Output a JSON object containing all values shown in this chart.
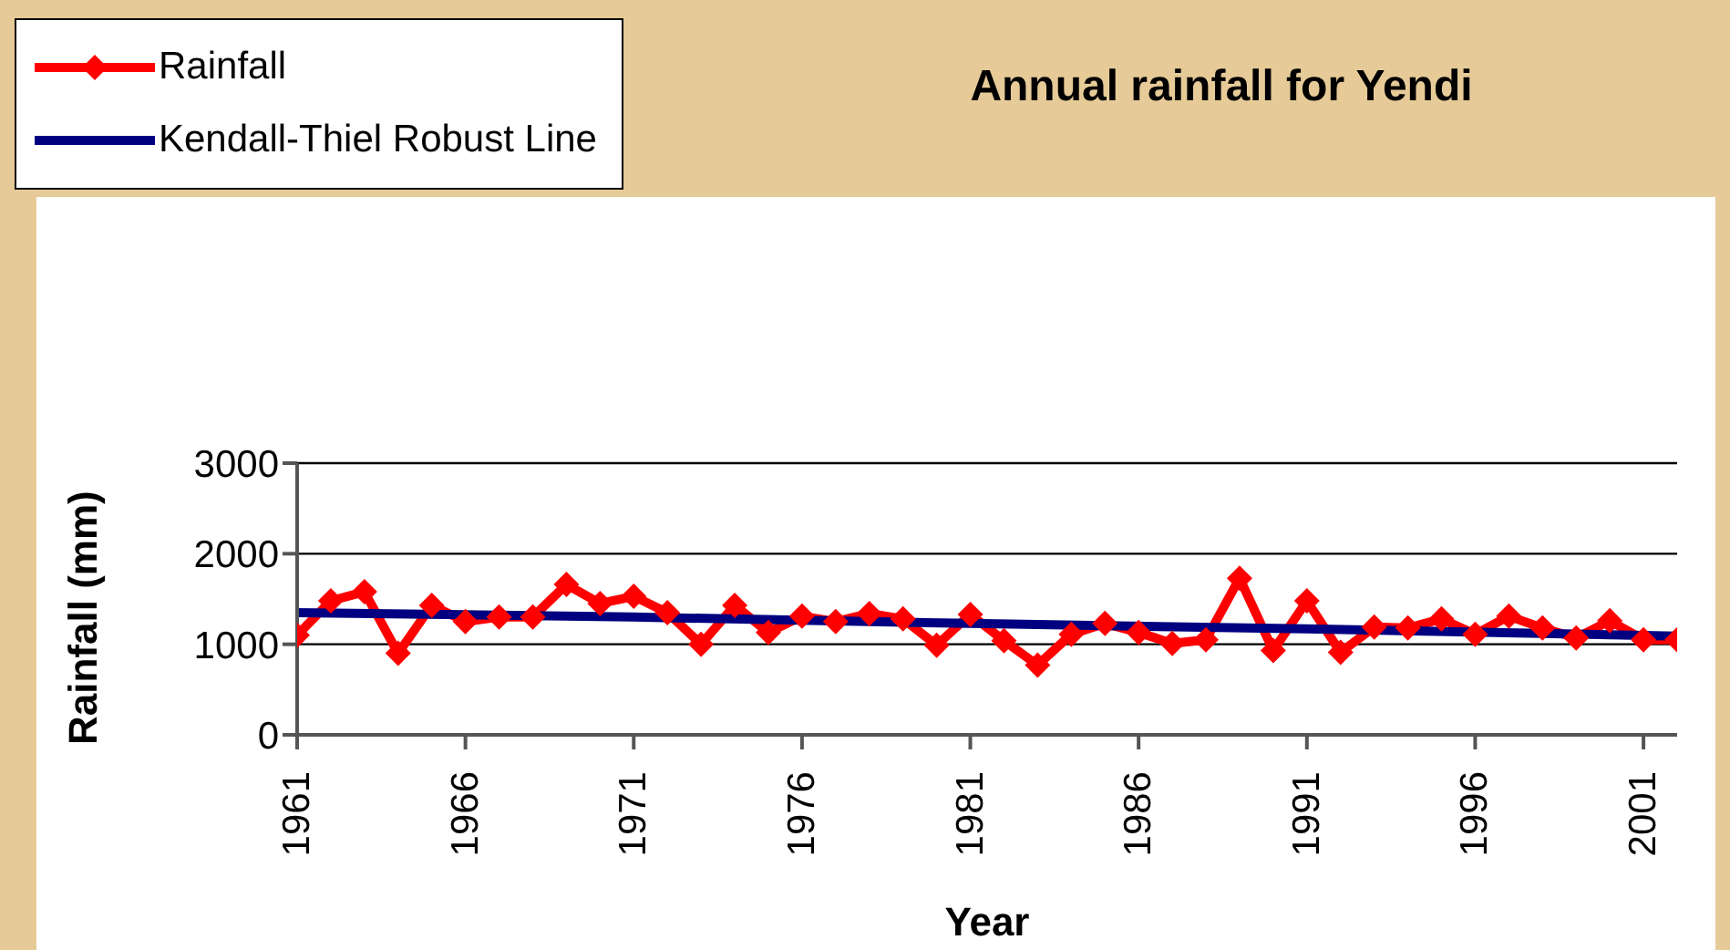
{
  "chart_data": {
    "type": "line",
    "title": "Annual rainfall for Yendi",
    "xlabel": "Year",
    "ylabel": "Rainfall (mm)",
    "xlim": [
      1961,
      2002
    ],
    "xticks": [
      1961,
      1966,
      1971,
      1976,
      1981,
      1986,
      1991,
      1996,
      2001
    ],
    "ylim": [
      0,
      3000
    ],
    "yticks": [
      0,
      1000,
      2000,
      3000
    ],
    "grid": "y",
    "legend": "top left",
    "series": [
      {
        "name": "Rainfall",
        "color": "#ff0000",
        "marker": "diamond",
        "x": [
          1961,
          1962,
          1963,
          1964,
          1965,
          1966,
          1967,
          1968,
          1969,
          1970,
          1971,
          1972,
          1973,
          1974,
          1975,
          1976,
          1977,
          1978,
          1979,
          1980,
          1981,
          1982,
          1983,
          1984,
          1985,
          1986,
          1987,
          1988,
          1989,
          1990,
          1991,
          1992,
          1993,
          1994,
          1995,
          1996,
          1997,
          1998,
          1999,
          2000,
          2001,
          2002
        ],
        "values": [
          1100,
          1480,
          1580,
          900,
          1430,
          1250,
          1300,
          1300,
          1660,
          1450,
          1530,
          1350,
          1000,
          1430,
          1130,
          1310,
          1250,
          1340,
          1280,
          990,
          1330,
          1040,
          770,
          1110,
          1230,
          1130,
          1010,
          1050,
          1730,
          930,
          1480,
          910,
          1190,
          1180,
          1280,
          1110,
          1310,
          1180,
          1070,
          1260,
          1050,
          1050
        ]
      },
      {
        "name": "Kendall-Thiel Robust Line",
        "color": "#000080",
        "marker": "none",
        "x": [
          1961,
          1971,
          1981,
          1991,
          2002
        ],
        "values": [
          1350,
          1300,
          1230,
          1170,
          1090
        ]
      }
    ]
  }
}
